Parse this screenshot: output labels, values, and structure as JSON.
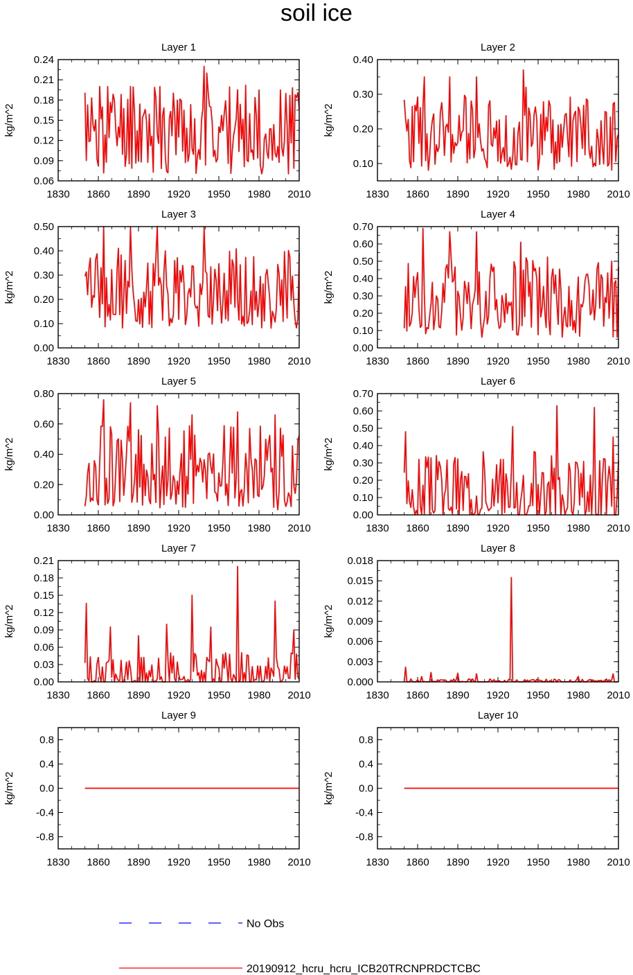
{
  "title": "soil ice",
  "colors": {
    "series": "#ff0000",
    "obs": "#0000ff",
    "axis": "#000000"
  },
  "legend": {
    "obs_label": "No Obs",
    "series_label": "20190912_hcru_hcru_ICB20TRCNPRDCTCBC"
  },
  "chart_data": [
    {
      "type": "line",
      "title": "Layer 1",
      "ylabel": "kg/m^2",
      "xlim": [
        1830,
        2010
      ],
      "ylim": [
        0.06,
        0.24
      ],
      "xticks": [
        "1830",
        "1860",
        "1890",
        "1920",
        "1950",
        "1980",
        "2010"
      ],
      "yticks": [
        "0.06",
        "0.09",
        "0.12",
        "0.15",
        "0.18",
        "0.21",
        "0.24"
      ],
      "series": [
        {
          "name": "20190912_hcru_hcru_ICB20TRCNPRDCTCBC",
          "x_start": 1850,
          "x_end": 2010,
          "base": 0.14,
          "amp": 0.035,
          "min": 0.07,
          "max": 0.22,
          "seed": 11,
          "spikes": [
            [
              1861,
              0.2
            ],
            [
              1867,
              0.2
            ],
            [
              1884,
              0.2
            ],
            [
              1906,
              0.2
            ],
            [
              1919,
              0.18
            ],
            [
              1939,
              0.23
            ],
            [
              1941,
              0.22
            ],
            [
              2000,
              0.19
            ]
          ]
        }
      ]
    },
    {
      "type": "line",
      "title": "Layer 2",
      "ylabel": "kg/m^2",
      "xlim": [
        1830,
        2010
      ],
      "ylim": [
        0.05,
        0.4
      ],
      "xticks": [
        "1830",
        "1860",
        "1890",
        "1920",
        "1950",
        "1980",
        "2010"
      ],
      "yticks": [
        "0.10",
        "0.20",
        "0.30",
        "0.40"
      ],
      "series": [
        {
          "name": "20190912_hcru_hcru_ICB20TRCNPRDCTCBC",
          "x_start": 1850,
          "x_end": 2010,
          "base": 0.19,
          "amp": 0.06,
          "min": 0.08,
          "max": 0.33,
          "seed": 23,
          "spikes": [
            [
              1865,
              0.35
            ],
            [
              1884,
              0.35
            ],
            [
              1904,
              0.35
            ],
            [
              1939,
              0.37
            ],
            [
              1941,
              0.32
            ]
          ]
        }
      ]
    },
    {
      "type": "line",
      "title": "Layer 3",
      "ylabel": "kg/m^2",
      "xlim": [
        1830,
        2010
      ],
      "ylim": [
        0,
        0.5
      ],
      "xticks": [
        "1830",
        "1860",
        "1890",
        "1920",
        "1950",
        "1980",
        "2010"
      ],
      "yticks": [
        "0.00",
        "0.10",
        "0.20",
        "0.30",
        "0.40",
        "0.50"
      ],
      "series": [
        {
          "name": "20190912_hcru_hcru_ICB20TRCNPRDCTCBC",
          "x_start": 1850,
          "x_end": 2010,
          "base": 0.25,
          "amp": 0.09,
          "min": 0.08,
          "max": 0.46,
          "seed": 37,
          "spikes": [
            [
              1864,
              0.5
            ],
            [
              1884,
              0.5
            ],
            [
              1904,
              0.5
            ],
            [
              1939,
              0.5
            ],
            [
              1910,
              0.4
            ]
          ]
        }
      ]
    },
    {
      "type": "line",
      "title": "Layer 4",
      "ylabel": "kg/m^2",
      "xlim": [
        1830,
        2010
      ],
      "ylim": [
        0,
        0.7
      ],
      "xticks": [
        "1830",
        "1860",
        "1890",
        "1920",
        "1950",
        "1980",
        "2010"
      ],
      "yticks": [
        "0.00",
        "0.10",
        "0.20",
        "0.30",
        "0.40",
        "0.50",
        "0.60",
        "0.70"
      ],
      "series": [
        {
          "name": "20190912_hcru_hcru_ICB20TRCNPRDCTCBC",
          "x_start": 1850,
          "x_end": 2010,
          "base": 0.3,
          "amp": 0.13,
          "min": 0.06,
          "max": 0.6,
          "seed": 41,
          "spikes": [
            [
              1864,
              0.69
            ],
            [
              1884,
              0.67
            ],
            [
              1904,
              0.67
            ],
            [
              1937,
              0.61
            ],
            [
              1941,
              0.52
            ]
          ]
        }
      ]
    },
    {
      "type": "line",
      "title": "Layer 5",
      "ylabel": "kg/m^2",
      "xlim": [
        1830,
        2010
      ],
      "ylim": [
        0,
        0.8
      ],
      "xticks": [
        "1830",
        "1860",
        "1890",
        "1920",
        "1950",
        "1980",
        "2010"
      ],
      "yticks": [
        "0.00",
        "0.20",
        "0.40",
        "0.60",
        "0.80"
      ],
      "series": [
        {
          "name": "20190912_hcru_hcru_ICB20TRCNPRDCTCBC",
          "x_start": 1850,
          "x_end": 2010,
          "base": 0.32,
          "amp": 0.15,
          "min": 0.03,
          "max": 0.7,
          "seed": 53,
          "spikes": [
            [
              1864,
              0.76
            ],
            [
              1884,
              0.74
            ],
            [
              1904,
              0.72
            ],
            [
              1930,
              0.66
            ],
            [
              1964,
              0.68
            ],
            [
              1992,
              0.66
            ]
          ]
        }
      ]
    },
    {
      "type": "line",
      "title": "Layer 6",
      "ylabel": "kg/m^2",
      "xlim": [
        1830,
        2010
      ],
      "ylim": [
        0,
        0.7
      ],
      "xticks": [
        "1830",
        "1860",
        "1890",
        "1920",
        "1950",
        "1980",
        "2010"
      ],
      "yticks": [
        "0.00",
        "0.10",
        "0.20",
        "0.30",
        "0.40",
        "0.50",
        "0.60",
        "0.70"
      ],
      "series": [
        {
          "name": "20190912_hcru_hcru_ICB20TRCNPRDCTCBC",
          "x_start": 1850,
          "x_end": 2010,
          "base": 0.15,
          "amp": 0.12,
          "min": 0.0,
          "max": 0.45,
          "seed": 67,
          "spikes": [
            [
              1851,
              0.48
            ],
            [
              1931,
              0.51
            ],
            [
              1964,
              0.63
            ],
            [
              1992,
              0.62
            ],
            [
              2006,
              0.45
            ]
          ]
        }
      ]
    },
    {
      "type": "line",
      "title": "Layer 7",
      "ylabel": "kg/m^2",
      "xlim": [
        1830,
        2010
      ],
      "ylim": [
        0,
        0.21
      ],
      "xticks": [
        "1830",
        "1860",
        "1890",
        "1920",
        "1950",
        "1980",
        "2010"
      ],
      "yticks": [
        "0.00",
        "0.03",
        "0.06",
        "0.09",
        "0.12",
        "0.15",
        "0.18",
        "0.21"
      ],
      "series": [
        {
          "name": "20190912_hcru_hcru_ICB20TRCNPRDCTCBC",
          "x_start": 1850,
          "x_end": 2010,
          "base": 0.015,
          "amp": 0.02,
          "min": 0.0,
          "max": 0.07,
          "seed": 79,
          "spikes": [
            [
              1851,
              0.136
            ],
            [
              1869,
              0.095
            ],
            [
              1890,
              0.08
            ],
            [
              1911,
              0.1
            ],
            [
              1930,
              0.15
            ],
            [
              1944,
              0.095
            ],
            [
              1964,
              0.2
            ],
            [
              1992,
              0.14
            ],
            [
              2006,
              0.09
            ]
          ]
        }
      ]
    },
    {
      "type": "line",
      "title": "Layer 8",
      "ylabel": "kg/m^2",
      "xlim": [
        1830,
        2010
      ],
      "ylim": [
        0,
        0.018
      ],
      "xticks": [
        "1830",
        "1860",
        "1890",
        "1920",
        "1950",
        "1980",
        "2010"
      ],
      "yticks": [
        "0.000",
        "0.003",
        "0.006",
        "0.009",
        "0.012",
        "0.015",
        "0.018"
      ],
      "series": [
        {
          "name": "20190912_hcru_hcru_ICB20TRCNPRDCTCBC",
          "x_start": 1850,
          "x_end": 2010,
          "base": 0.0001,
          "amp": 0.0002,
          "min": 0.0,
          "max": 0.0015,
          "seed": 83,
          "spikes": [
            [
              1851,
              0.0022
            ],
            [
              1863,
              0.0008
            ],
            [
              1870,
              0.0014
            ],
            [
              1890,
              0.0013
            ],
            [
              1904,
              0.0012
            ],
            [
              1930,
              0.0155
            ],
            [
              1980,
              0.0008
            ],
            [
              2006,
              0.0012
            ]
          ]
        }
      ]
    },
    {
      "type": "line",
      "title": "Layer 9",
      "ylabel": "kg/m^2",
      "xlim": [
        1830,
        2010
      ],
      "ylim": [
        -1,
        1
      ],
      "xticks": [
        "1830",
        "1860",
        "1890",
        "1920",
        "1950",
        "1980",
        "2010"
      ],
      "yticks": [
        "-0.8",
        "-0.4",
        "0.0",
        "0.4",
        "0.8"
      ],
      "series": [
        {
          "name": "20190912_hcru_hcru_ICB20TRCNPRDCTCBC",
          "x_start": 1850,
          "x_end": 2010,
          "constant": 0
        }
      ]
    },
    {
      "type": "line",
      "title": "Layer 10",
      "ylabel": "kg/m^2",
      "xlim": [
        1830,
        2010
      ],
      "ylim": [
        -1,
        1
      ],
      "xticks": [
        "1830",
        "1860",
        "1890",
        "1920",
        "1950",
        "1980",
        "2010"
      ],
      "yticks": [
        "-0.8",
        "-0.4",
        "0.0",
        "0.4",
        "0.8"
      ],
      "series": [
        {
          "name": "20190912_hcru_hcru_ICB20TRCNPRDCTCBC",
          "x_start": 1850,
          "x_end": 2010,
          "constant": 0
        }
      ]
    }
  ]
}
